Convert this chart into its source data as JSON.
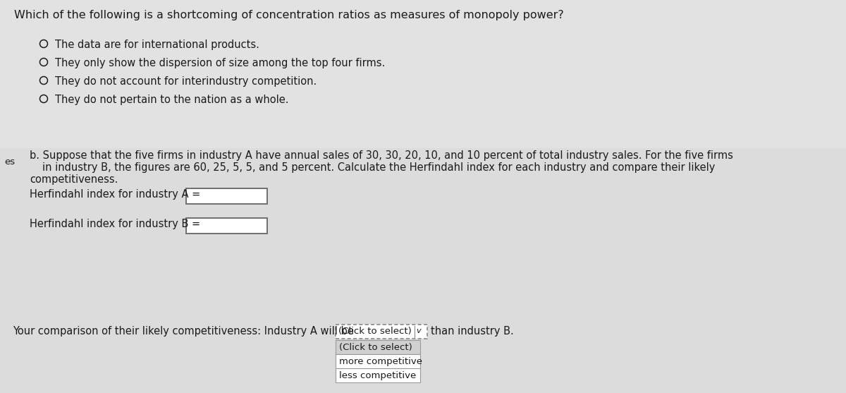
{
  "bg_color": "#e8e8e8",
  "bg_color_top": "#f0f0f0",
  "title_text": "Which of the following is a shortcoming of concentration ratios as measures of monopoly power?",
  "options": [
    "The data are for international products.",
    "They only show the dispersion of size among the top four firms.",
    "They do not account for interindustry competition.",
    "They do not pertain to the nation as a whole."
  ],
  "part_b_line1": "b. Suppose that the five firms in industry A have annual sales of 30, 30, 20, 10, and 10 percent of total industry sales. For the five firms",
  "part_b_line2": "in industry B, the figures are 60, 25, 5, 5, and 5 percent. Calculate the Herfindahl index for each industry and compare their likely",
  "part_b_line3": "competitiveness.",
  "label_a": "Herfindahl index for industry A =",
  "label_b": "Herfindahl index for industry B =",
  "comparison_text": "Your comparison of their likely competitiveness: Industry A will be",
  "dropdown_text": "(Click to select)",
  "dropdown_arrow": "∨",
  "after_dropdown": "than industry B.",
  "dropdown_options": [
    "(Click to select)",
    "more competitive",
    "less competitive"
  ],
  "left_label": "es",
  "font_size_title": 11.5,
  "font_size_body": 10.5,
  "font_size_small": 9.5,
  "font_size_dropdown": 9.5,
  "text_color": "#1a1a1a",
  "text_color_light": "#333333",
  "box_color": "#ffffff",
  "box_border": "#666666",
  "dropdown_bg": "#e0e0e0",
  "dropdown_border_color": "#888888",
  "menu_bg": "#d8d8d8",
  "menu_border": "#999999"
}
